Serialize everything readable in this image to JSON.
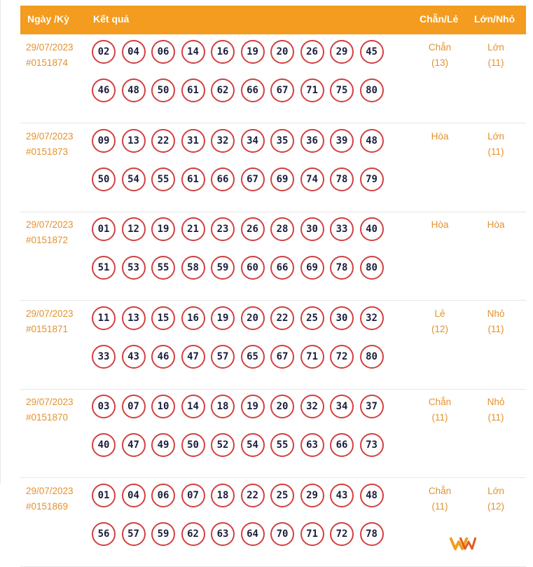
{
  "header": {
    "date": "Ngày /Kỳ",
    "result": "Kết quả",
    "even_odd": "Chẵn/Lẻ",
    "big_small": "Lớn/Nhỏ"
  },
  "rows": [
    {
      "date": "29/07/2023",
      "id": "#0151874",
      "numbers": [
        "02",
        "04",
        "06",
        "14",
        "16",
        "19",
        "20",
        "26",
        "29",
        "45",
        "46",
        "48",
        "50",
        "61",
        "62",
        "66",
        "67",
        "71",
        "75",
        "80"
      ],
      "even_odd": "Chẵn",
      "even_odd_count": "(13)",
      "big_small": "Lớn",
      "big_small_count": "(11)"
    },
    {
      "date": "29/07/2023",
      "id": "#0151873",
      "numbers": [
        "09",
        "13",
        "22",
        "31",
        "32",
        "34",
        "35",
        "36",
        "39",
        "48",
        "50",
        "54",
        "55",
        "61",
        "66",
        "67",
        "69",
        "74",
        "78",
        "79"
      ],
      "even_odd": "Hòa",
      "even_odd_count": "",
      "big_small": "Lớn",
      "big_small_count": "(11)"
    },
    {
      "date": "29/07/2023",
      "id": "#0151872",
      "numbers": [
        "01",
        "12",
        "19",
        "21",
        "23",
        "26",
        "28",
        "30",
        "33",
        "40",
        "51",
        "53",
        "55",
        "58",
        "59",
        "60",
        "66",
        "69",
        "78",
        "80"
      ],
      "even_odd": "Hòa",
      "even_odd_count": "",
      "big_small": "Hòa",
      "big_small_count": ""
    },
    {
      "date": "29/07/2023",
      "id": "#0151871",
      "numbers": [
        "11",
        "13",
        "15",
        "16",
        "19",
        "20",
        "22",
        "25",
        "30",
        "32",
        "33",
        "43",
        "46",
        "47",
        "57",
        "65",
        "67",
        "71",
        "72",
        "80"
      ],
      "even_odd": "Lẻ",
      "even_odd_count": "(12)",
      "big_small": "Nhỏ",
      "big_small_count": "(11)"
    },
    {
      "date": "29/07/2023",
      "id": "#0151870",
      "numbers": [
        "03",
        "07",
        "10",
        "14",
        "18",
        "19",
        "20",
        "32",
        "34",
        "37",
        "40",
        "47",
        "49",
        "50",
        "52",
        "54",
        "55",
        "63",
        "66",
        "73"
      ],
      "even_odd": "Chẵn",
      "even_odd_count": "(11)",
      "big_small": "Nhỏ",
      "big_small_count": "(11)"
    },
    {
      "date": "29/07/2023",
      "id": "#0151869",
      "numbers": [
        "01",
        "04",
        "06",
        "07",
        "18",
        "22",
        "25",
        "29",
        "43",
        "48",
        "56",
        "57",
        "59",
        "62",
        "63",
        "64",
        "70",
        "71",
        "72",
        "78"
      ],
      "even_odd": "Chẵn",
      "even_odd_count": "(11)",
      "big_small": "Lớn",
      "big_small_count": "(12)"
    }
  ],
  "colors": {
    "header_bg": "#f39c1f",
    "accent_text": "#e3922f",
    "ball_border": "#d24040",
    "ball_text": "#1b1f3b"
  },
  "logo_icon": "w-brand-logo-icon"
}
